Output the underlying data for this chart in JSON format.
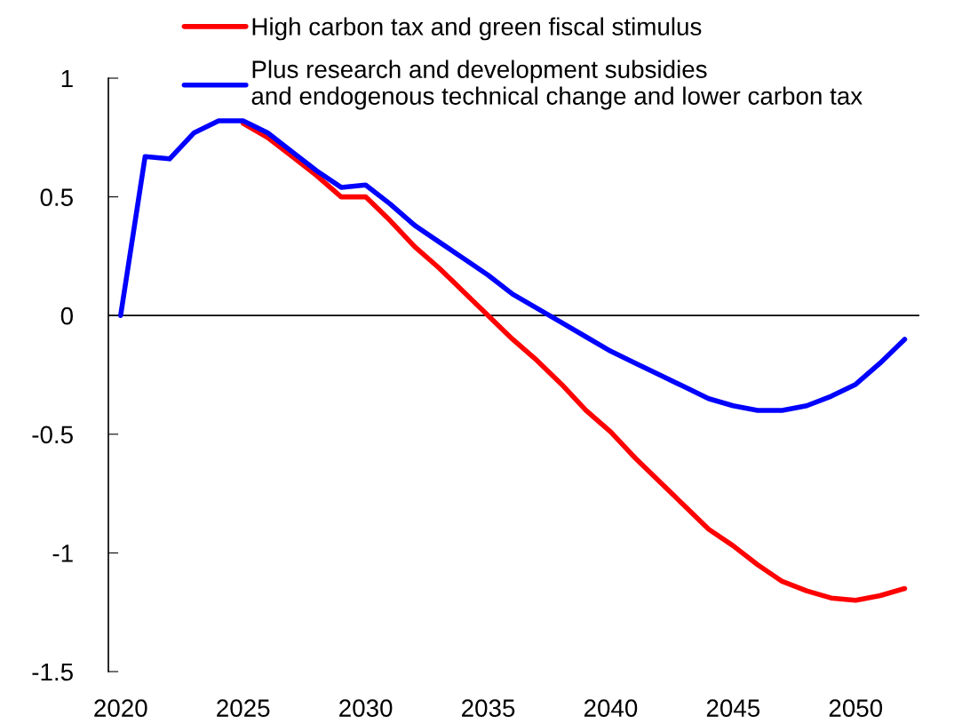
{
  "chart_data": {
    "type": "line",
    "x": [
      2020,
      2021,
      2022,
      2023,
      2024,
      2025,
      2026,
      2027,
      2028,
      2029,
      2030,
      2031,
      2032,
      2033,
      2034,
      2035,
      2036,
      2037,
      2038,
      2039,
      2040,
      2041,
      2042,
      2043,
      2044,
      2045,
      2046,
      2047,
      2048,
      2049,
      2050,
      2051,
      2052
    ],
    "series": [
      {
        "name": "High carbon tax and green fiscal stimulus",
        "color": "#ff0000",
        "values": [
          null,
          null,
          null,
          null,
          null,
          0.81,
          0.75,
          0.67,
          0.59,
          0.5,
          0.5,
          0.4,
          0.29,
          0.2,
          0.1,
          0.0,
          -0.1,
          -0.19,
          -0.29,
          -0.4,
          -0.49,
          -0.6,
          -0.7,
          -0.8,
          -0.9,
          -0.97,
          -1.05,
          -1.12,
          -1.16,
          -1.19,
          -1.2,
          -1.18,
          -1.15
        ]
      },
      {
        "name": "Plus research and development subsidies\nand endogenous technical change and lower carbon tax",
        "color": "#0000ff",
        "values": [
          0,
          0.67,
          0.66,
          0.77,
          0.82,
          0.82,
          0.77,
          0.69,
          0.61,
          0.54,
          0.55,
          0.47,
          0.38,
          0.31,
          0.24,
          0.17,
          0.09,
          0.03,
          -0.03,
          -0.09,
          -0.15,
          -0.2,
          -0.25,
          -0.3,
          -0.35,
          -0.38,
          -0.4,
          -0.4,
          -0.38,
          -0.34,
          -0.29,
          -0.2,
          -0.1
        ]
      }
    ],
    "xlim": [
      2019.5,
      2052.6
    ],
    "xticks": [
      2020,
      2025,
      2030,
      2035,
      2040,
      2045,
      2050
    ],
    "ylim": [
      -1.5,
      1
    ],
    "yticks": [
      -1.5,
      -1,
      -0.5,
      0,
      0.5,
      1
    ],
    "ref_lines": [
      {
        "axis": "y",
        "value": 0,
        "color": "#000000"
      }
    ],
    "legend": "top",
    "grid": false,
    "marker": "none",
    "line_style": "solid"
  }
}
